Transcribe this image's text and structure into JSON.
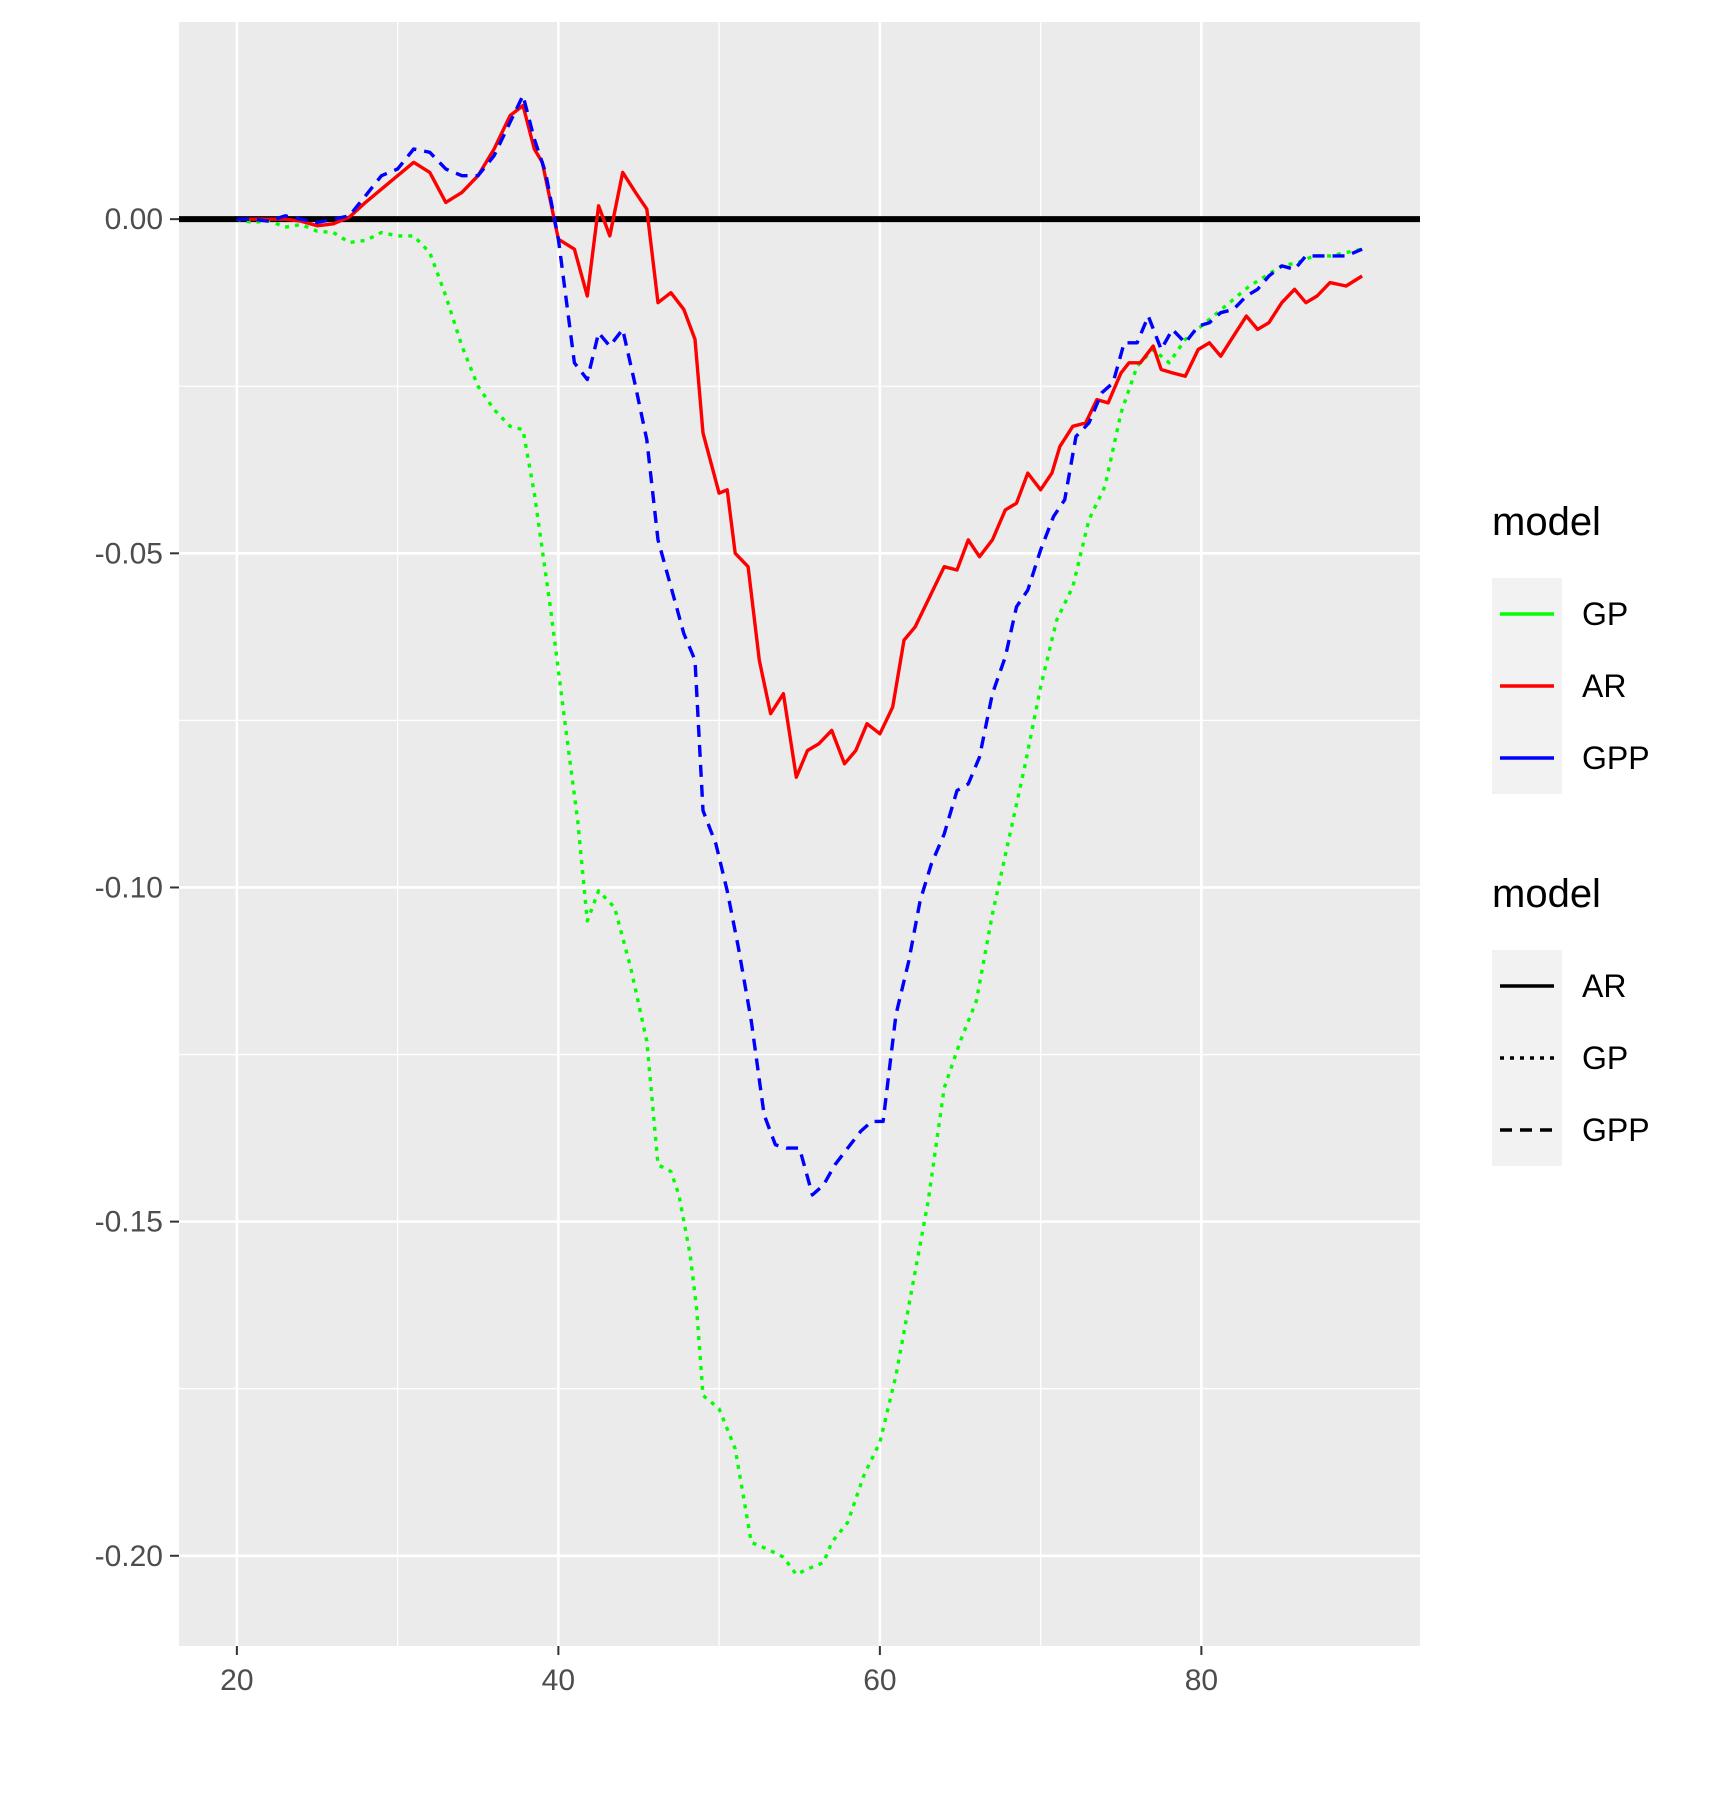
{
  "chart_data": {
    "type": "line",
    "title": "",
    "xlabel": "",
    "ylabel": "",
    "xlim": [
      16.4,
      93.6
    ],
    "ylim": [
      -0.2135,
      0.0295
    ],
    "x_ticks": [
      20,
      40,
      60,
      80
    ],
    "x_tick_labels": [
      "20",
      "40",
      "60",
      "80"
    ],
    "y_ticks": [
      0.0,
      -0.05,
      -0.1,
      -0.15,
      -0.2
    ],
    "y_tick_labels": [
      "0.00",
      "-0.05",
      "-0.10",
      "-0.15",
      "-0.20"
    ],
    "grid": true,
    "background_color": "#ebebeb",
    "reference_line": {
      "y": 0,
      "color": "#000000"
    },
    "series": [
      {
        "name": "GP",
        "color": "#00ff00",
        "linetype": "dotted",
        "points": [
          [
            20,
            0
          ],
          [
            21,
            -0.0005
          ],
          [
            22,
            -0.0002
          ],
          [
            23,
            -0.0012
          ],
          [
            24,
            -0.0008
          ],
          [
            25,
            -0.0018
          ],
          [
            26,
            -0.002
          ],
          [
            27,
            -0.0035
          ],
          [
            28,
            -0.0032
          ],
          [
            29,
            -0.002
          ],
          [
            30,
            -0.0025
          ],
          [
            31,
            -0.0025
          ],
          [
            32,
            -0.005
          ],
          [
            33,
            -0.0115
          ],
          [
            34,
            -0.019
          ],
          [
            35,
            -0.025
          ],
          [
            36,
            -0.0285
          ],
          [
            37,
            -0.031
          ],
          [
            37.8,
            -0.0315
          ],
          [
            38.5,
            -0.041
          ],
          [
            39.5,
            -0.058
          ],
          [
            40.5,
            -0.077
          ],
          [
            41.2,
            -0.09
          ],
          [
            41.8,
            -0.105
          ],
          [
            42.5,
            -0.1005
          ],
          [
            43.5,
            -0.103
          ],
          [
            44.5,
            -0.112
          ],
          [
            45.5,
            -0.123
          ],
          [
            46.2,
            -0.1415
          ],
          [
            47,
            -0.1425
          ],
          [
            47.5,
            -0.146
          ],
          [
            48.2,
            -0.155
          ],
          [
            48.6,
            -0.163
          ],
          [
            49,
            -0.176
          ],
          [
            50,
            -0.178
          ],
          [
            51,
            -0.184
          ],
          [
            52,
            -0.198
          ],
          [
            53,
            -0.199
          ],
          [
            54,
            -0.2002
          ],
          [
            54.8,
            -0.2028
          ],
          [
            55.5,
            -0.202
          ],
          [
            56.5,
            -0.201
          ],
          [
            57,
            -0.198
          ],
          [
            58,
            -0.195
          ],
          [
            59,
            -0.188
          ],
          [
            60,
            -0.183
          ],
          [
            61,
            -0.173
          ],
          [
            62,
            -0.16
          ],
          [
            63,
            -0.147
          ],
          [
            64,
            -0.13
          ],
          [
            65,
            -0.123
          ],
          [
            66,
            -0.117
          ],
          [
            67,
            -0.104
          ],
          [
            68,
            -0.093
          ],
          [
            69,
            -0.082
          ],
          [
            70,
            -0.07
          ],
          [
            71,
            -0.06
          ],
          [
            72,
            -0.055
          ],
          [
            73,
            -0.045
          ],
          [
            74,
            -0.04
          ],
          [
            75,
            -0.029
          ],
          [
            76,
            -0.022
          ],
          [
            77,
            -0.0195
          ],
          [
            78,
            -0.0215
          ],
          [
            79,
            -0.018
          ],
          [
            80,
            -0.016
          ],
          [
            81,
            -0.014
          ],
          [
            82,
            -0.012
          ],
          [
            83,
            -0.01
          ],
          [
            84,
            -0.0085
          ],
          [
            85,
            -0.007
          ],
          [
            86,
            -0.0065
          ],
          [
            87,
            -0.0055
          ],
          [
            88,
            -0.0055
          ],
          [
            89,
            -0.005
          ],
          [
            90,
            -0.0045
          ]
        ]
      },
      {
        "name": "AR",
        "color": "#ff0000",
        "linetype": "solid",
        "points": [
          [
            20,
            0
          ],
          [
            21,
            0
          ],
          [
            22,
            0
          ],
          [
            23,
            0
          ],
          [
            24,
            -0.0003
          ],
          [
            25,
            -0.001
          ],
          [
            26,
            -0.0007
          ],
          [
            27,
            0.0003
          ],
          [
            28,
            0.0025
          ],
          [
            29,
            0.0045
          ],
          [
            30,
            0.0065
          ],
          [
            31,
            0.0085
          ],
          [
            32,
            0.007
          ],
          [
            33,
            0.0025
          ],
          [
            34,
            0.004
          ],
          [
            35,
            0.0065
          ],
          [
            36,
            0.0105
          ],
          [
            37,
            0.0155
          ],
          [
            37.8,
            0.017
          ],
          [
            38.5,
            0.0105
          ],
          [
            39,
            0.0085
          ],
          [
            40,
            -0.003
          ],
          [
            41,
            -0.0045
          ],
          [
            41.8,
            -0.0115
          ],
          [
            42.5,
            0.002
          ],
          [
            43.2,
            -0.0025
          ],
          [
            44,
            0.007
          ],
          [
            44.8,
            0.004
          ],
          [
            45.5,
            0.0015
          ],
          [
            46.2,
            -0.0125
          ],
          [
            47,
            -0.011
          ],
          [
            47.8,
            -0.0135
          ],
          [
            48.5,
            -0.018
          ],
          [
            49,
            -0.032
          ],
          [
            50,
            -0.041
          ],
          [
            50.5,
            -0.0405
          ],
          [
            51,
            -0.05
          ],
          [
            51.8,
            -0.052
          ],
          [
            52.5,
            -0.066
          ],
          [
            53.2,
            -0.074
          ],
          [
            54,
            -0.071
          ],
          [
            54.8,
            -0.0835
          ],
          [
            55.5,
            -0.0795
          ],
          [
            56.2,
            -0.0785
          ],
          [
            57,
            -0.0765
          ],
          [
            57.8,
            -0.0815
          ],
          [
            58.5,
            -0.0795
          ],
          [
            59.2,
            -0.0755
          ],
          [
            60,
            -0.077
          ],
          [
            60.8,
            -0.073
          ],
          [
            61.5,
            -0.063
          ],
          [
            62.2,
            -0.061
          ],
          [
            63,
            -0.057
          ],
          [
            64,
            -0.052
          ],
          [
            64.8,
            -0.0525
          ],
          [
            65.5,
            -0.048
          ],
          [
            66.2,
            -0.0505
          ],
          [
            67,
            -0.048
          ],
          [
            67.8,
            -0.0435
          ],
          [
            68.5,
            -0.0425
          ],
          [
            69.2,
            -0.038
          ],
          [
            70,
            -0.0405
          ],
          [
            70.7,
            -0.038
          ],
          [
            71.2,
            -0.034
          ],
          [
            72,
            -0.031
          ],
          [
            72.8,
            -0.0305
          ],
          [
            73.5,
            -0.027
          ],
          [
            74.2,
            -0.0275
          ],
          [
            75,
            -0.023
          ],
          [
            75.5,
            -0.0215
          ],
          [
            76.2,
            -0.0215
          ],
          [
            77,
            -0.019
          ],
          [
            77.5,
            -0.0225
          ],
          [
            78.2,
            -0.023
          ],
          [
            79,
            -0.0235
          ],
          [
            79.8,
            -0.0195
          ],
          [
            80.5,
            -0.0185
          ],
          [
            81.2,
            -0.0205
          ],
          [
            82,
            -0.0175
          ],
          [
            82.8,
            -0.0145
          ],
          [
            83.5,
            -0.0165
          ],
          [
            84.2,
            -0.0155
          ],
          [
            85,
            -0.0125
          ],
          [
            85.8,
            -0.0105
          ],
          [
            86.5,
            -0.0125
          ],
          [
            87.2,
            -0.0115
          ],
          [
            88,
            -0.0095
          ],
          [
            89,
            -0.01
          ],
          [
            90,
            -0.0085
          ]
        ]
      },
      {
        "name": "GPP",
        "color": "#0000ff",
        "linetype": "dashed",
        "points": [
          [
            20,
            0
          ],
          [
            21,
            0
          ],
          [
            22,
            -0.0003
          ],
          [
            23,
            0.0005
          ],
          [
            24,
            0
          ],
          [
            25,
            -0.0005
          ],
          [
            26,
            0
          ],
          [
            27,
            0.0005
          ],
          [
            28,
            0.0035
          ],
          [
            29,
            0.0065
          ],
          [
            30,
            0.0075
          ],
          [
            31,
            0.0105
          ],
          [
            32,
            0.01
          ],
          [
            33,
            0.0075
          ],
          [
            34,
            0.0065
          ],
          [
            35,
            0.0065
          ],
          [
            36,
            0.0095
          ],
          [
            37,
            0.0145
          ],
          [
            37.8,
            0.0185
          ],
          [
            38.5,
            0.012
          ],
          [
            39.2,
            0.007
          ],
          [
            40,
            -0.003
          ],
          [
            41,
            -0.0215
          ],
          [
            41.8,
            -0.024
          ],
          [
            42.5,
            -0.017
          ],
          [
            43.2,
            -0.019
          ],
          [
            44,
            -0.0165
          ],
          [
            44.8,
            -0.025
          ],
          [
            45.5,
            -0.033
          ],
          [
            46.2,
            -0.048
          ],
          [
            47,
            -0.055
          ],
          [
            47.8,
            -0.062
          ],
          [
            48.5,
            -0.066
          ],
          [
            49,
            -0.0885
          ],
          [
            49.8,
            -0.0935
          ],
          [
            50.5,
            -0.1005
          ],
          [
            51.2,
            -0.109
          ],
          [
            52,
            -0.12
          ],
          [
            52.8,
            -0.134
          ],
          [
            53.5,
            -0.1385
          ],
          [
            54.2,
            -0.139
          ],
          [
            55,
            -0.139
          ],
          [
            55.8,
            -0.146
          ],
          [
            56.5,
            -0.1445
          ],
          [
            57.2,
            -0.1415
          ],
          [
            58,
            -0.139
          ],
          [
            58.8,
            -0.1365
          ],
          [
            59.5,
            -0.135
          ],
          [
            60.2,
            -0.135
          ],
          [
            61,
            -0.119
          ],
          [
            61.8,
            -0.111
          ],
          [
            62.5,
            -0.102
          ],
          [
            63.2,
            -0.0965
          ],
          [
            64,
            -0.092
          ],
          [
            64.8,
            -0.0855
          ],
          [
            65.5,
            -0.0845
          ],
          [
            66.2,
            -0.0805
          ],
          [
            67,
            -0.071
          ],
          [
            67.8,
            -0.0655
          ],
          [
            68.5,
            -0.058
          ],
          [
            69.2,
            -0.0555
          ],
          [
            70,
            -0.0495
          ],
          [
            70.8,
            -0.0445
          ],
          [
            71.5,
            -0.042
          ],
          [
            72.2,
            -0.0325
          ],
          [
            73,
            -0.0305
          ],
          [
            73.8,
            -0.026
          ],
          [
            74.5,
            -0.0245
          ],
          [
            75.2,
            -0.0185
          ],
          [
            76,
            -0.0185
          ],
          [
            76.7,
            -0.0145
          ],
          [
            77.5,
            -0.0195
          ],
          [
            78.2,
            -0.0165
          ],
          [
            79,
            -0.0185
          ],
          [
            79.8,
            -0.016
          ],
          [
            80.5,
            -0.0155
          ],
          [
            81.2,
            -0.014
          ],
          [
            82,
            -0.0135
          ],
          [
            82.8,
            -0.0115
          ],
          [
            83.5,
            -0.0105
          ],
          [
            84.2,
            -0.0085
          ],
          [
            85,
            -0.007
          ],
          [
            85.8,
            -0.0075
          ],
          [
            86.5,
            -0.0055
          ],
          [
            87.2,
            -0.0055
          ],
          [
            88,
            -0.0055
          ],
          [
            89,
            -0.0055
          ],
          [
            90,
            -0.0045
          ]
        ]
      }
    ],
    "legends": [
      {
        "title": "model",
        "kind": "color",
        "placement": "right",
        "items": [
          {
            "label": "GP",
            "color": "#00ff00"
          },
          {
            "label": "AR",
            "color": "#ff0000"
          },
          {
            "label": "GPP",
            "color": "#0000ff"
          }
        ]
      },
      {
        "title": "model",
        "kind": "linetype",
        "placement": "right",
        "items": [
          {
            "label": "AR",
            "linetype": "solid"
          },
          {
            "label": "GP",
            "linetype": "dotted"
          },
          {
            "label": "GPP",
            "linetype": "dashed"
          }
        ]
      }
    ]
  }
}
